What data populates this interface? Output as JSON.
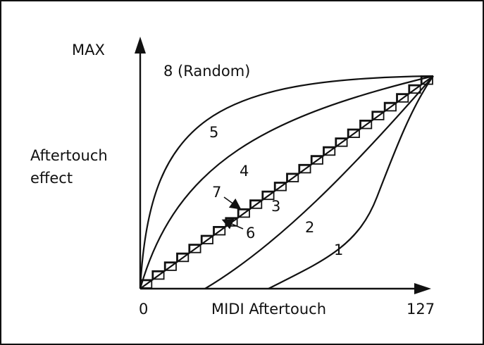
{
  "diagram": {
    "y_axis_top_label": "MAX",
    "y_axis_label_line1": "Aftertouch",
    "y_axis_label_line2": "effect",
    "x_axis_label": "MIDI Aftertouch",
    "x_min_label": "0",
    "x_max_label": "127",
    "curves": [
      {
        "id": "1",
        "label": "1"
      },
      {
        "id": "2",
        "label": "2"
      },
      {
        "id": "3",
        "label": "3"
      },
      {
        "id": "4",
        "label": "4"
      },
      {
        "id": "5",
        "label": "5"
      },
      {
        "id": "6",
        "label": "6"
      },
      {
        "id": "7",
        "label": "7"
      },
      {
        "id": "8",
        "label": "8 (Random)"
      }
    ]
  }
}
